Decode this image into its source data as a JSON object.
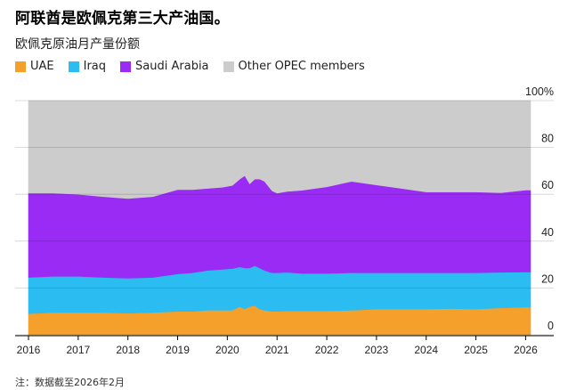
{
  "header": {
    "title": "阿联酋是欧佩克第三大产油国。",
    "subtitle": "欧佩克原油月产量份额"
  },
  "legend": [
    {
      "label": "UAE",
      "color": "#f5a02b"
    },
    {
      "label": "Iraq",
      "color": "#2bbdf2"
    },
    {
      "label": "Saudi Arabia",
      "color": "#9a2bf5"
    },
    {
      "label": "Other OPEC members",
      "color": "#cccccc"
    }
  ],
  "note": "注：数据截至2026年2月",
  "chart_data": {
    "type": "area",
    "stacked": true,
    "x_labels": [
      "2016",
      "2017",
      "2018",
      "2019",
      "2020",
      "2021",
      "2022",
      "2023",
      "2024",
      "2025",
      "2026"
    ],
    "y_tick_labels": [
      "100%",
      "80",
      "60",
      "40",
      "20",
      "0"
    ],
    "ylim": [
      0,
      100
    ],
    "xlim": [
      2016.0,
      2026.1
    ],
    "x": [
      2016.0,
      2016.5,
      2017.0,
      2017.5,
      2018.0,
      2018.5,
      2019.0,
      2019.3,
      2019.6,
      2019.9,
      2020.1,
      2020.25,
      2020.35,
      2020.45,
      2020.55,
      2020.65,
      2020.75,
      2020.9,
      2021.0,
      2021.2,
      2021.5,
      2022.0,
      2022.5,
      2023.0,
      2023.5,
      2024.0,
      2024.5,
      2024.9,
      2025.0,
      2025.5,
      2026.0,
      2026.1
    ],
    "series": [
      {
        "name": "UAE",
        "color": "#f5a02b",
        "values": [
          9,
          9.5,
          9.5,
          9.5,
          9.2,
          9.5,
          10,
          10,
          10.5,
          10.5,
          10.5,
          12,
          11,
          12,
          12.5,
          11,
          10.5,
          10,
          10,
          10.2,
          10.2,
          10.2,
          10.5,
          11,
          11,
          11,
          11.2,
          11,
          11,
          11.5,
          11.8,
          11.8
        ]
      },
      {
        "name": "Iraq",
        "color": "#2bbdf2",
        "values": [
          15.5,
          15.5,
          15.5,
          15,
          15,
          15,
          16,
          16.5,
          17,
          17.5,
          17.8,
          17,
          17.5,
          16.5,
          17,
          17.5,
          17,
          16.5,
          16.5,
          16.5,
          16,
          16,
          16,
          15.5,
          15.5,
          15.5,
          15.3,
          15.5,
          15.5,
          15.2,
          15,
          15
        ]
      },
      {
        "name": "Saudi Arabia",
        "color": "#9a2bf5",
        "values": [
          36,
          35.5,
          35,
          34.5,
          34,
          34.5,
          36,
          35.5,
          35,
          35,
          35.5,
          37.5,
          39.5,
          36,
          37,
          38,
          38,
          35,
          34,
          34.5,
          35.5,
          37,
          39,
          37.5,
          36,
          34.5,
          34.5,
          34.5,
          34.5,
          34,
          35,
          35
        ]
      },
      {
        "name": "Other OPEC members",
        "color": "#cccccc",
        "values": [
          39.5,
          39.5,
          40,
          41,
          41.8,
          41,
          38,
          38,
          37.5,
          37,
          36.2,
          33.5,
          32,
          35.5,
          33.5,
          33.5,
          34.5,
          38.5,
          39.5,
          38.8,
          38.3,
          36.8,
          34.5,
          36,
          37.5,
          39,
          39,
          39,
          39,
          39.3,
          38.2,
          38.2
        ]
      }
    ]
  }
}
